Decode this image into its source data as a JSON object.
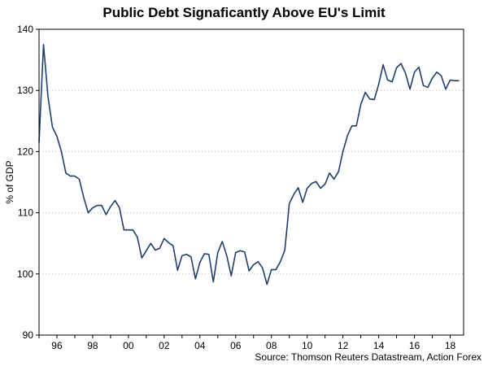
{
  "chart_data": {
    "type": "line",
    "title": "Public Debt Signaficantly Above EU's Limit",
    "xlabel": "",
    "ylabel": "% of GDP",
    "source": "Source: Thomson Reuters Datastream, Action Forex",
    "ylim": [
      90,
      140
    ],
    "xlim": [
      1995.0,
      2018.75
    ],
    "yticks": [
      90,
      100,
      110,
      120,
      130,
      140
    ],
    "xticks": [
      {
        "value": 1996,
        "label": "96"
      },
      {
        "value": 1998,
        "label": "98"
      },
      {
        "value": 2000,
        "label": "00"
      },
      {
        "value": 2002,
        "label": "02"
      },
      {
        "value": 2004,
        "label": "04"
      },
      {
        "value": 2006,
        "label": "06"
      },
      {
        "value": 2008,
        "label": "08"
      },
      {
        "value": 2010,
        "label": "10"
      },
      {
        "value": 2012,
        "label": "12"
      },
      {
        "value": 2014,
        "label": "14"
      },
      {
        "value": 2016,
        "label": "16"
      },
      {
        "value": 2018,
        "label": "18"
      }
    ],
    "grid": "horizontal dotted",
    "series": [
      {
        "name": "Public Debt (% of GDP)",
        "color": "#1f3f6e",
        "x": [
          1995.0,
          1995.25,
          1995.5,
          1995.75,
          1996.0,
          1996.25,
          1996.5,
          1996.75,
          1997.0,
          1997.25,
          1997.5,
          1997.75,
          1998.0,
          1998.25,
          1998.5,
          1998.75,
          1999.0,
          1999.25,
          1999.5,
          1999.75,
          2000.0,
          2000.25,
          2000.5,
          2000.75,
          2001.0,
          2001.25,
          2001.5,
          2001.75,
          2002.0,
          2002.25,
          2002.5,
          2002.75,
          2003.0,
          2003.25,
          2003.5,
          2003.75,
          2004.0,
          2004.25,
          2004.5,
          2004.75,
          2005.0,
          2005.25,
          2005.5,
          2005.75,
          2006.0,
          2006.25,
          2006.5,
          2006.75,
          2007.0,
          2007.25,
          2007.5,
          2007.75,
          2008.0,
          2008.25,
          2008.5,
          2008.75,
          2009.0,
          2009.25,
          2009.5,
          2009.75,
          2010.0,
          2010.25,
          2010.5,
          2010.75,
          2011.0,
          2011.25,
          2011.5,
          2011.75,
          2012.0,
          2012.25,
          2012.5,
          2012.75,
          2013.0,
          2013.25,
          2013.5,
          2013.75,
          2014.0,
          2014.25,
          2014.5,
          2014.75,
          2015.0,
          2015.25,
          2015.5,
          2015.75,
          2016.0,
          2016.25,
          2016.5,
          2016.75,
          2017.0,
          2017.25,
          2017.5,
          2017.75,
          2018.0,
          2018.25,
          2018.5
        ],
        "values": [
          121.5,
          137.5,
          129.0,
          124.0,
          122.5,
          120.0,
          116.5,
          116.0,
          116.0,
          115.5,
          112.5,
          110.0,
          110.8,
          111.2,
          111.2,
          109.7,
          111.0,
          112.0,
          110.8,
          107.2,
          107.2,
          107.2,
          106.0,
          102.6,
          103.8,
          105.0,
          103.9,
          104.2,
          105.8,
          105.1,
          104.6,
          100.6,
          103.0,
          103.2,
          102.8,
          99.2,
          101.9,
          103.3,
          103.2,
          98.7,
          103.5,
          105.3,
          103.0,
          99.7,
          103.5,
          103.8,
          103.6,
          100.5,
          101.5,
          102.0,
          101.0,
          98.3,
          100.7,
          100.7,
          102.0,
          103.9,
          111.5,
          113.0,
          114.1,
          111.7,
          114.0,
          114.8,
          115.1,
          114.0,
          114.7,
          116.5,
          115.5,
          116.7,
          120.0,
          122.6,
          124.2,
          124.2,
          127.7,
          129.7,
          128.6,
          128.5,
          131.0,
          134.2,
          131.7,
          131.4,
          133.7,
          134.4,
          132.8,
          130.2,
          133.0,
          133.8,
          130.8,
          130.5,
          132.0,
          133.0,
          132.4,
          130.2,
          131.7,
          131.6,
          131.6
        ]
      }
    ]
  }
}
